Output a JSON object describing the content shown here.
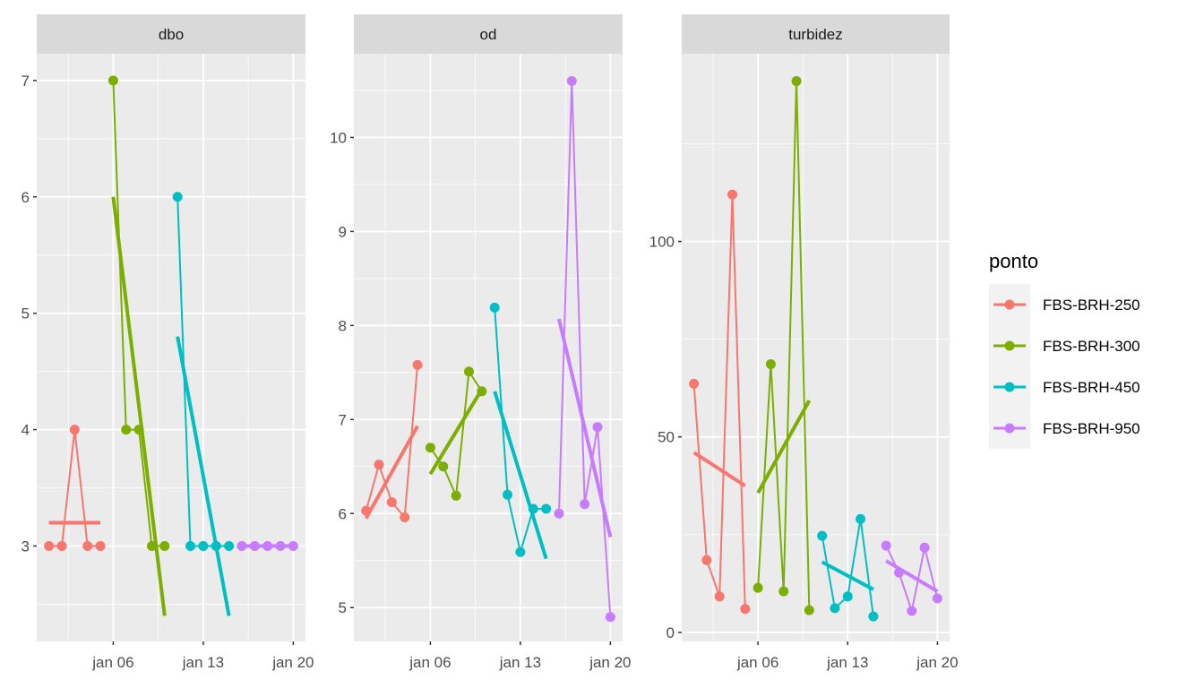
{
  "chart_data": {
    "type": "line",
    "facets": [
      "dbo",
      "od",
      "turbidez"
    ],
    "x": [
      "2024-01-01",
      "2024-01-02",
      "2024-01-03",
      "2024-01-04",
      "2024-01-05",
      "2024-01-06",
      "2024-01-07",
      "2024-01-08",
      "2024-01-09",
      "2024-01-10",
      "2024-01-11",
      "2024-01-12",
      "2024-01-13",
      "2024-01-14",
      "2024-01-15",
      "2024-01-16",
      "2024-01-17",
      "2024-01-18",
      "2024-01-19",
      "2024-01-20"
    ],
    "x_tick_labels": [
      "jan 06",
      "jan 13",
      "jan 20"
    ],
    "x_ticks_day": [
      6,
      13,
      20
    ],
    "xlim_day": [
      0.05,
      20.95
    ],
    "grid": true,
    "legend": {
      "title": "ponto",
      "position": "right"
    },
    "series": [
      {
        "name": "FBS-BRH-250",
        "color": "#F8766D",
        "days": [
          1,
          2,
          3,
          4,
          5
        ]
      },
      {
        "name": "FBS-BRH-300",
        "color": "#7CAE00",
        "days": [
          6,
          7,
          8,
          9,
          10
        ]
      },
      {
        "name": "FBS-BRH-450",
        "color": "#00BFC4",
        "days": [
          11,
          12,
          13,
          14,
          15
        ]
      },
      {
        "name": "FBS-BRH-950",
        "color": "#C77CFF",
        "days": [
          16,
          17,
          18,
          19,
          20
        ]
      }
    ],
    "panels": [
      {
        "strip": "dbo",
        "ylim": [
          2.18,
          7.23
        ],
        "y_ticks": [
          3,
          4,
          5,
          6,
          7
        ],
        "y_tick_labels": [
          "3",
          "4",
          "5",
          "6",
          "7"
        ],
        "values": [
          [
            3,
            3,
            4,
            3,
            3
          ],
          [
            7,
            4,
            4,
            3,
            3
          ],
          [
            6,
            3,
            3,
            3,
            3
          ],
          [
            3,
            3,
            3,
            3,
            3
          ]
        ],
        "trend": [
          [
            3.2,
            3.2
          ],
          [
            6.0,
            2.4
          ],
          [
            4.8,
            2.4
          ],
          [
            3.0,
            3.0
          ]
        ]
      },
      {
        "strip": "od",
        "ylim": [
          4.64,
          10.89
        ],
        "y_ticks": [
          5,
          6,
          7,
          8,
          9,
          10
        ],
        "y_tick_labels": [
          "5",
          "6",
          "7",
          "8",
          "9",
          "10"
        ],
        "values": [
          [
            6.03,
            6.52,
            6.12,
            5.96,
            7.58
          ],
          [
            6.7,
            6.5,
            6.19,
            7.51,
            7.3
          ],
          [
            8.19,
            6.2,
            5.59,
            6.05,
            6.05
          ],
          [
            6.0,
            10.6,
            6.1,
            6.92,
            4.9
          ]
        ],
        "trend": [
          [
            5.95,
            6.93
          ],
          [
            6.42,
            7.32
          ],
          [
            7.3,
            5.52
          ],
          [
            8.07,
            5.75
          ]
        ]
      },
      {
        "strip": "turbidez",
        "ylim": [
          -2.3,
          148
        ],
        "y_ticks": [
          0,
          50,
          100
        ],
        "y_tick_labels": [
          "0",
          "50",
          "100"
        ],
        "values": [
          [
            63.6,
            18.5,
            9.2,
            112,
            6.0
          ],
          [
            11.4,
            68.6,
            10.5,
            141,
            5.7
          ],
          [
            24.7,
            6.2,
            9.2,
            29,
            4.1
          ],
          [
            22.2,
            15.3,
            5.5,
            21.7,
            8.7
          ]
        ],
        "trend": [
          [
            46,
            37.5
          ],
          [
            35.7,
            59.3
          ],
          [
            18,
            11
          ],
          [
            18.3,
            10.5
          ]
        ]
      }
    ]
  }
}
